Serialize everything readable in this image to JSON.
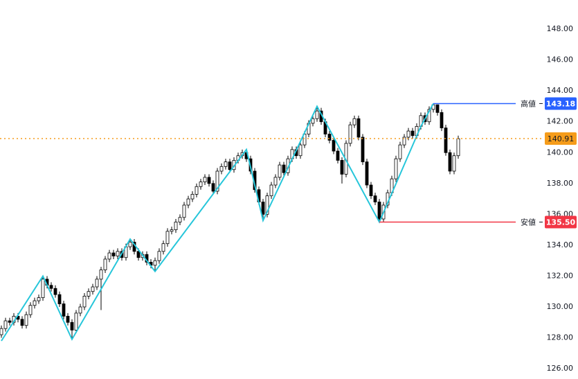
{
  "chart_data": {
    "type": "candlestick",
    "ylim": [
      125.33,
      149.89
    ],
    "yticks": [
      {
        "value": 126,
        "label": "126.00"
      },
      {
        "value": 128,
        "label": "128.00"
      },
      {
        "value": 130,
        "label": "130.00"
      },
      {
        "value": 132,
        "label": "132.00"
      },
      {
        "value": 134,
        "label": "134.00"
      },
      {
        "value": 136,
        "label": "136.00"
      },
      {
        "value": 138,
        "label": "138.00"
      },
      {
        "value": 140,
        "label": "140.00"
      },
      {
        "value": 142,
        "label": "142.00"
      },
      {
        "value": 144,
        "label": "144.00"
      },
      {
        "value": 146,
        "label": "146.00"
      },
      {
        "value": 148,
        "label": "148.00"
      }
    ],
    "up_color": "#ffffff",
    "down_color": "#000000",
    "outline_color": "#000000",
    "open": [
      128.2,
      128.6,
      129.1,
      129.0,
      129.4,
      129.2,
      128.8,
      129.5,
      130.1,
      130.4,
      130.6,
      131.8,
      131.4,
      131.2,
      130.8,
      130.2,
      129.4,
      129.0,
      128.5,
      129.6,
      130.0,
      130.7,
      131.0,
      131.3,
      131.8,
      132.4,
      133.1,
      133.5,
      133.3,
      133.6,
      133.2,
      133.9,
      134.2,
      133.6,
      133.2,
      133.4,
      132.9,
      132.7,
      133.0,
      133.6,
      134.1,
      134.9,
      135.0,
      135.5,
      135.8,
      136.6,
      137.0,
      137.3,
      137.8,
      138.1,
      138.4,
      138.0,
      137.5,
      138.8,
      139.1,
      139.4,
      138.9,
      139.5,
      139.8,
      140.0,
      139.6,
      138.8,
      137.6,
      136.8,
      136.0,
      137.2,
      137.9,
      138.4,
      139.2,
      138.7,
      139.6,
      140.2,
      139.8,
      140.5,
      141.2,
      141.9,
      142.2,
      142.7,
      142.0,
      141.2,
      140.8,
      140.1,
      139.5,
      138.6,
      140.6,
      141.8,
      142.2,
      141.0,
      139.4,
      137.9,
      137.2,
      136.8,
      135.7,
      136.6,
      137.4,
      138.3,
      139.6,
      140.5,
      141.0,
      141.4,
      141.1,
      141.7,
      142.4,
      142.0,
      142.8,
      143.1,
      142.6,
      141.6,
      140.0,
      138.8,
      139.8
    ],
    "high": [
      128.8,
      129.3,
      129.3,
      129.6,
      129.6,
      129.4,
      129.7,
      130.3,
      130.6,
      130.8,
      132.0,
      132.0,
      131.6,
      131.4,
      131.0,
      130.4,
      129.6,
      129.2,
      129.8,
      130.2,
      130.9,
      131.2,
      131.5,
      132.0,
      132.6,
      133.3,
      133.7,
      133.7,
      133.8,
      133.8,
      134.1,
      134.4,
      134.4,
      133.8,
      133.6,
      133.6,
      133.1,
      133.2,
      133.8,
      134.3,
      135.1,
      135.2,
      135.7,
      136.0,
      136.8,
      137.2,
      137.5,
      138.0,
      138.3,
      138.6,
      138.6,
      138.2,
      139.0,
      139.3,
      139.6,
      139.6,
      139.7,
      140.0,
      140.2,
      140.2,
      139.8,
      139.0,
      137.8,
      137.0,
      137.4,
      138.1,
      138.6,
      139.4,
      139.4,
      139.8,
      140.4,
      140.4,
      140.7,
      141.4,
      142.1,
      142.4,
      143.0,
      142.9,
      142.2,
      141.4,
      141.0,
      140.3,
      139.7,
      140.8,
      142.0,
      142.4,
      142.4,
      141.2,
      139.6,
      138.1,
      137.4,
      137.0,
      136.8,
      137.6,
      138.5,
      139.8,
      140.7,
      141.2,
      141.6,
      141.6,
      141.9,
      142.6,
      142.6,
      143.0,
      143.18,
      143.1,
      142.8,
      141.8,
      140.2,
      140.0,
      141.1
    ],
    "low": [
      128.0,
      128.4,
      128.8,
      128.8,
      129.0,
      128.6,
      128.6,
      129.3,
      129.9,
      130.2,
      130.4,
      131.2,
      131.0,
      130.6,
      130.0,
      129.2,
      128.8,
      127.9,
      128.3,
      129.4,
      129.8,
      130.5,
      130.8,
      131.1,
      129.8,
      132.2,
      132.9,
      133.1,
      133.1,
      133.0,
      133.0,
      133.7,
      133.4,
      133.0,
      133.0,
      132.7,
      132.5,
      132.3,
      132.8,
      133.4,
      133.9,
      134.7,
      134.8,
      135.3,
      135.6,
      136.4,
      136.8,
      137.1,
      137.6,
      137.9,
      137.8,
      137.3,
      137.3,
      138.6,
      138.9,
      138.7,
      138.7,
      139.3,
      139.6,
      139.4,
      138.6,
      137.4,
      136.6,
      135.6,
      135.8,
      137.0,
      137.7,
      138.2,
      138.5,
      138.5,
      139.4,
      139.6,
      139.6,
      140.3,
      141.0,
      141.7,
      142.0,
      141.8,
      141.0,
      140.6,
      139.9,
      139.3,
      138.0,
      138.4,
      140.4,
      141.6,
      140.8,
      139.2,
      137.7,
      137.0,
      136.6,
      135.5,
      135.5,
      136.4,
      137.2,
      138.1,
      139.4,
      140.3,
      140.8,
      140.9,
      140.9,
      141.5,
      141.8,
      141.8,
      142.6,
      142.4,
      141.4,
      139.8,
      138.6,
      138.6,
      139.6
    ],
    "close": [
      128.6,
      129.1,
      129.0,
      129.4,
      129.2,
      128.8,
      129.5,
      130.1,
      130.4,
      130.6,
      131.8,
      131.4,
      131.2,
      130.8,
      130.2,
      129.4,
      129.0,
      128.5,
      129.6,
      130.0,
      130.7,
      131.0,
      131.3,
      131.8,
      132.4,
      133.1,
      133.5,
      133.3,
      133.6,
      133.2,
      133.9,
      134.2,
      133.6,
      133.2,
      133.4,
      132.9,
      132.7,
      133.0,
      133.6,
      134.1,
      134.9,
      135.0,
      135.5,
      135.8,
      136.6,
      137.0,
      137.3,
      137.8,
      138.1,
      138.4,
      138.0,
      137.5,
      138.8,
      139.1,
      139.4,
      138.9,
      139.5,
      139.8,
      140.0,
      139.6,
      138.8,
      137.6,
      136.8,
      136.0,
      137.2,
      137.9,
      138.4,
      139.2,
      138.7,
      139.6,
      140.2,
      139.8,
      140.5,
      141.2,
      141.9,
      142.2,
      142.7,
      142.0,
      141.2,
      140.8,
      140.1,
      139.5,
      138.6,
      140.6,
      141.8,
      142.2,
      141.0,
      139.4,
      137.9,
      137.2,
      136.8,
      135.7,
      136.6,
      137.4,
      138.3,
      139.6,
      140.5,
      141.0,
      141.4,
      141.1,
      141.7,
      142.4,
      142.0,
      142.8,
      143.1,
      142.6,
      141.6,
      140.0,
      138.8,
      139.8,
      140.9
    ],
    "zigzag": {
      "color": "#26c6da",
      "x": [
        0,
        10,
        17,
        31,
        37,
        59,
        63,
        76,
        91,
        101,
        104
      ],
      "values": [
        127.8,
        132.0,
        127.9,
        134.4,
        132.3,
        140.2,
        135.6,
        143.0,
        135.5,
        141.7,
        143.18
      ]
    },
    "high_line": {
      "label": "高値",
      "value": 143.18,
      "color": "#2962ff",
      "start": 104
    },
    "low_line": {
      "label": "安値",
      "value": 135.5,
      "value_label": "135.50",
      "color": "#f23645",
      "start": 91
    },
    "last_price": {
      "value": 140.91,
      "color": "#f59c1a"
    }
  }
}
